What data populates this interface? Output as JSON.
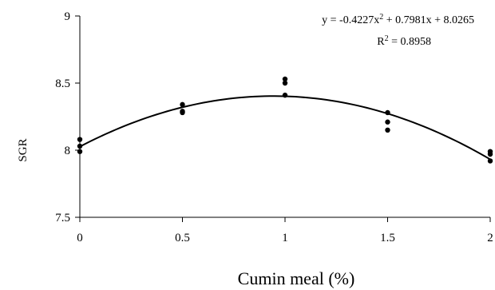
{
  "chart_data": {
    "type": "scatter",
    "xlabel": "Cumin meal (%)",
    "ylabel": "SGR",
    "xlim": [
      0,
      2
    ],
    "ylim": [
      7.5,
      9
    ],
    "x_ticks": [
      0,
      0.5,
      1,
      1.5,
      2
    ],
    "y_ticks": [
      7.5,
      8,
      8.5,
      9
    ],
    "x_tick_labels": [
      "0",
      "0.5",
      "1",
      "1.5",
      "2"
    ],
    "y_tick_labels": [
      "7.5",
      "8",
      "8.5",
      "9"
    ],
    "grid": false,
    "points": [
      {
        "x": 0,
        "y": 8.08
      },
      {
        "x": 0,
        "y": 8.03
      },
      {
        "x": 0,
        "y": 7.99
      },
      {
        "x": 0.5,
        "y": 8.34
      },
      {
        "x": 0.5,
        "y": 8.29
      },
      {
        "x": 0.5,
        "y": 8.28
      },
      {
        "x": 1,
        "y": 8.53
      },
      {
        "x": 1,
        "y": 8.5
      },
      {
        "x": 1,
        "y": 8.41
      },
      {
        "x": 1.5,
        "y": 8.28
      },
      {
        "x": 1.5,
        "y": 8.21
      },
      {
        "x": 1.5,
        "y": 8.15
      },
      {
        "x": 2,
        "y": 7.99
      },
      {
        "x": 2,
        "y": 7.97
      },
      {
        "x": 2,
        "y": 7.92
      }
    ],
    "trendline": {
      "type": "polynomial",
      "coefficients": [
        -0.4227,
        0.7981,
        8.0265
      ]
    },
    "annotations": {
      "equation_prefix": "y = -0.4227x",
      "equation_exp": "2",
      "equation_suffix": " + 0.7981x + 8.0265",
      "r2_prefix": "R",
      "r2_exp": "2",
      "r2_suffix": " = 0.8958"
    },
    "colors": {
      "points": "#000000",
      "line": "#000000",
      "axis": "#000000"
    }
  }
}
